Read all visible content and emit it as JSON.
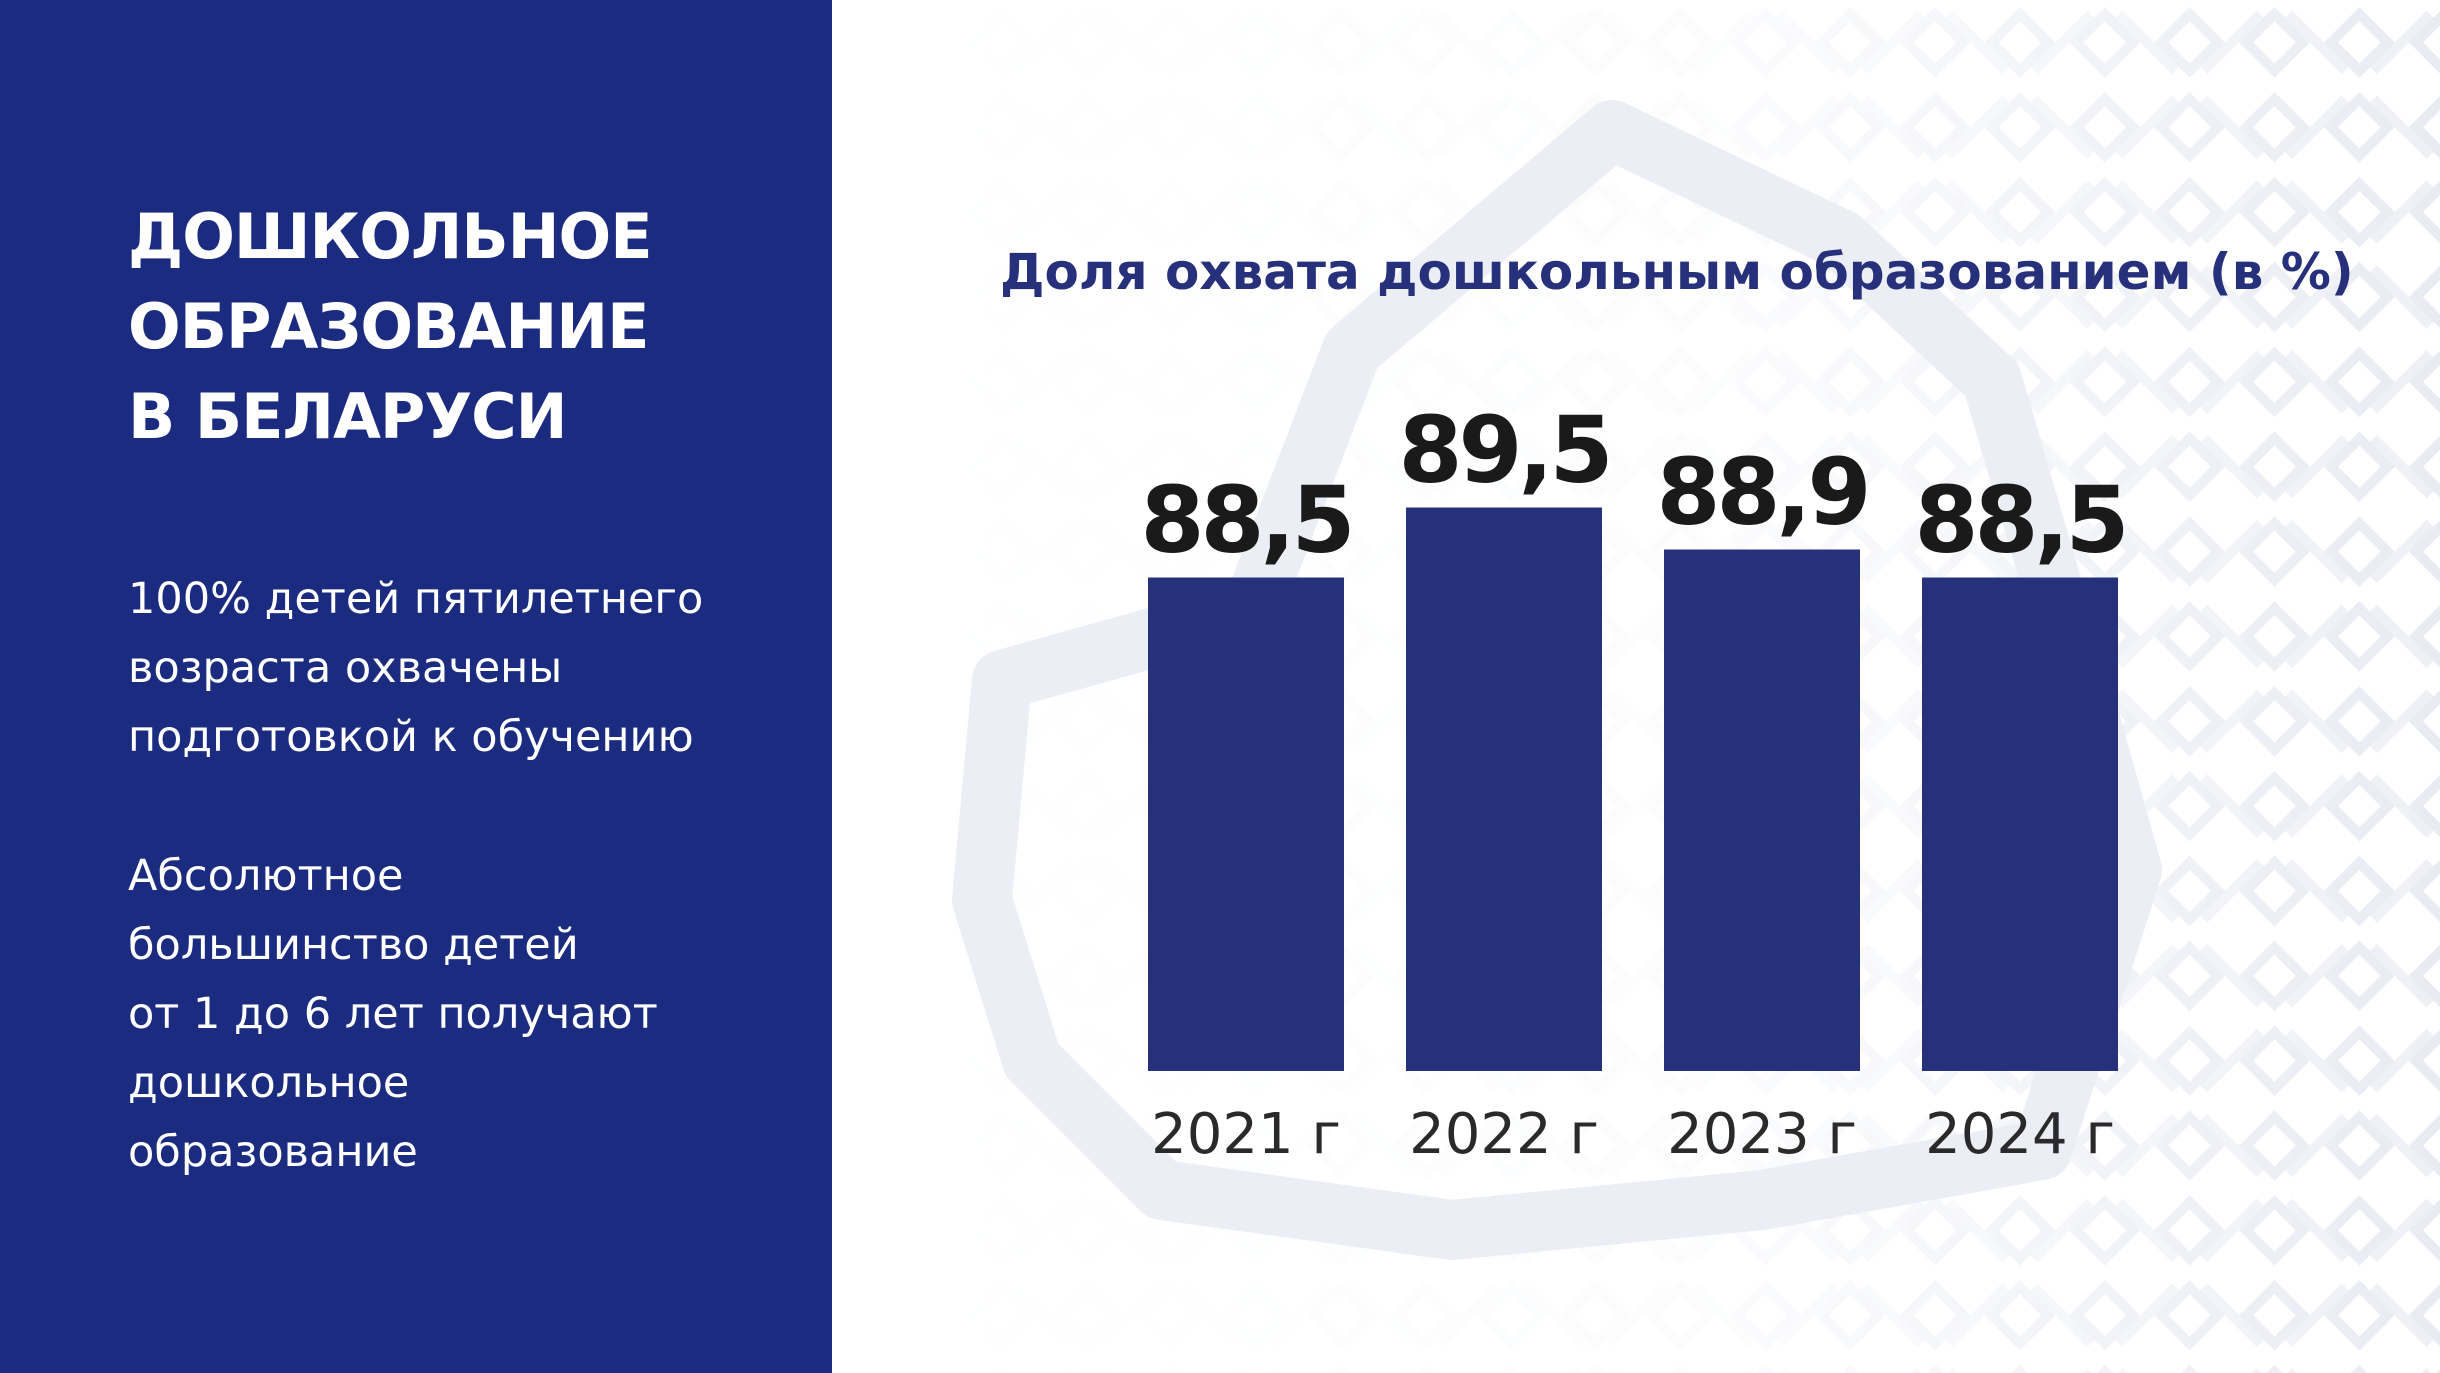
{
  "left_panel": {
    "heading_lines": [
      "ДОШКОЛЬНОЕ",
      "ОБРАЗОВАНИЕ",
      "В БЕЛАРУСИ"
    ],
    "paragraph1_lines": [
      "100% детей пятилетнего",
      "возраста охвачены",
      "подготовкой к обучению"
    ],
    "paragraph2_lines": [
      "Абсолютное",
      "большинство детей",
      "от 1 до 6 лет получают",
      "дошкольное",
      "образование"
    ]
  },
  "colors": {
    "panel_bg": "#1b2b80",
    "bar": "#27317b",
    "title": "#27307a"
  },
  "chart_data": {
    "type": "bar",
    "title": "Доля охвата дошкольным образованием (в %)",
    "categories": [
      "2021 г",
      "2022 г",
      "2023 г",
      "2024 г"
    ],
    "values": [
      88.5,
      89.5,
      88.9,
      88.5
    ],
    "value_labels": [
      "88,5",
      "89,5",
      "88,9",
      "88,5"
    ],
    "xlabel": "",
    "ylabel": "",
    "grid": false,
    "legend": "none"
  }
}
